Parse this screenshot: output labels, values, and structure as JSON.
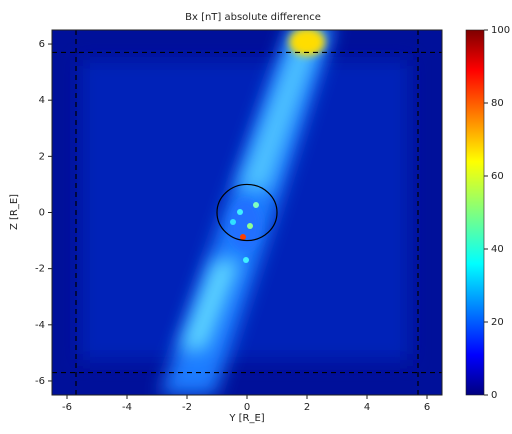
{
  "chart_data": {
    "type": "heatmap",
    "title": "Bx [nT] absolute difference",
    "xlabel": "Y [R_E]",
    "ylabel": "Z [R_E]",
    "xlim": [
      -6.5,
      6.5
    ],
    "ylim": [
      -6.5,
      6.5
    ],
    "xticks": [
      -6,
      -4,
      -2,
      0,
      2,
      4,
      6
    ],
    "yticks": [
      -6,
      -4,
      -2,
      0,
      2,
      4,
      6
    ],
    "clim": [
      0,
      100
    ],
    "cticks": [
      0,
      20,
      40,
      60,
      80,
      100
    ],
    "colormap": [
      "#00007f",
      "#0000ff",
      "#00ffff",
      "#ffff00",
      "#ff0000",
      "#7f0000"
    ],
    "dashed_lines": [
      -5.7,
      5.7
    ],
    "circle_radius": 1
  }
}
